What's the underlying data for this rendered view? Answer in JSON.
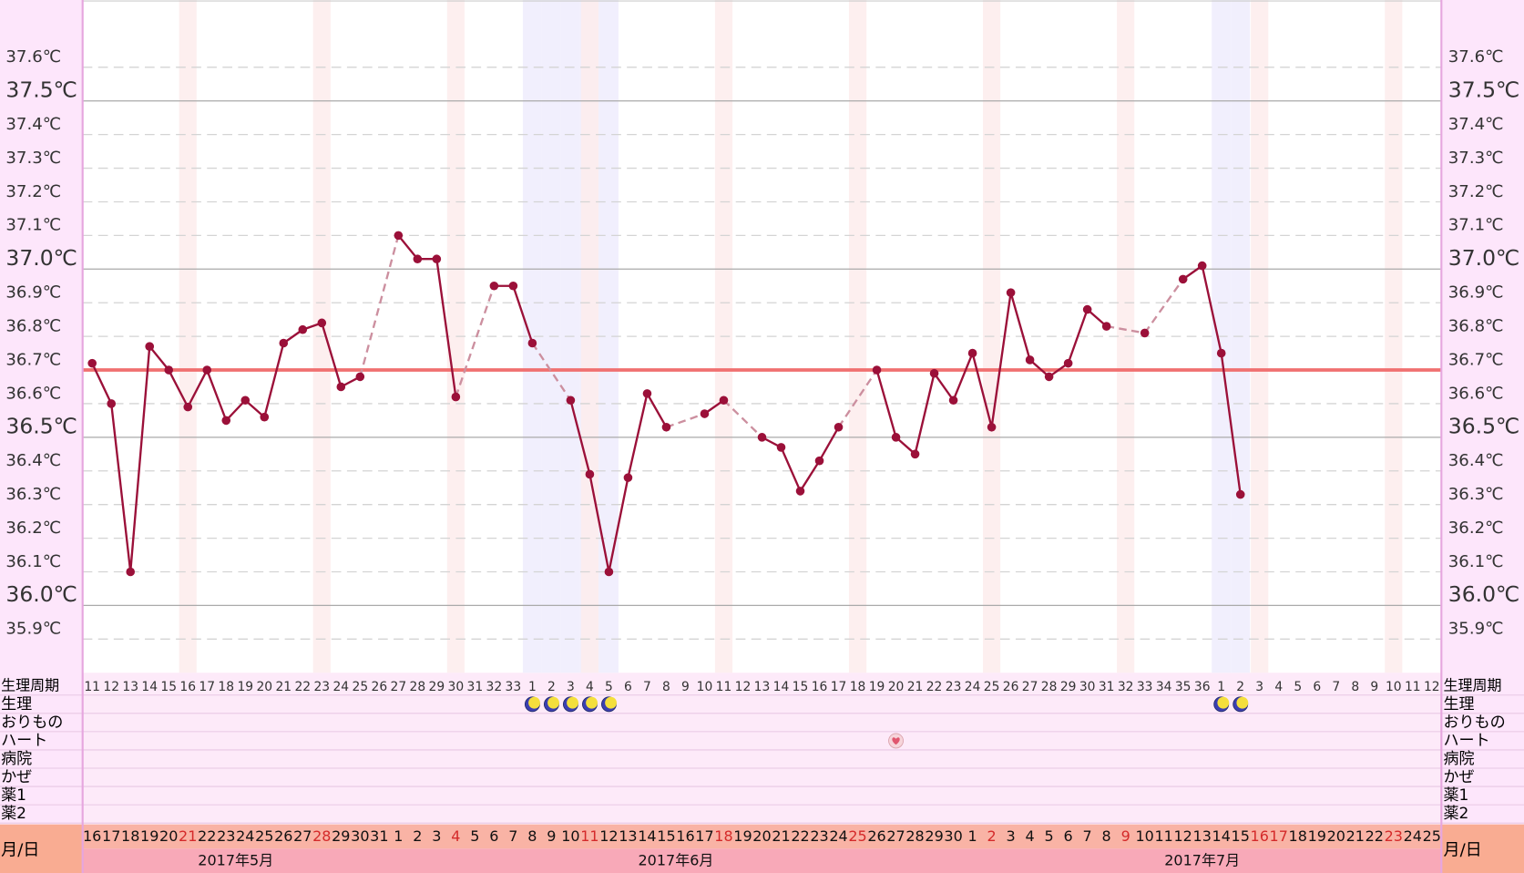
{
  "chart_data": {
    "type": "line",
    "categories": [
      "16",
      "17",
      "18",
      "19",
      "20",
      "21",
      "22",
      "23",
      "24",
      "25",
      "26",
      "27",
      "28",
      "29",
      "30",
      "31",
      "1",
      "2",
      "3",
      "4",
      "5",
      "6",
      "7",
      "8",
      "9",
      "10",
      "11",
      "12",
      "13",
      "14",
      "15",
      "16",
      "17",
      "18",
      "19",
      "20",
      "21",
      "22",
      "23",
      "24",
      "25",
      "26",
      "27",
      "28",
      "29",
      "30",
      "1",
      "2",
      "3",
      "4",
      "5",
      "6",
      "7",
      "8",
      "9",
      "10",
      "11",
      "12",
      "13",
      "14",
      "15",
      "16",
      "17",
      "18",
      "19",
      "20",
      "21",
      "22",
      "23",
      "24",
      "25"
    ],
    "cycle_days": [
      11,
      12,
      13,
      14,
      15,
      16,
      17,
      18,
      19,
      20,
      21,
      22,
      23,
      24,
      25,
      26,
      27,
      28,
      29,
      30,
      31,
      32,
      33,
      1,
      2,
      3,
      4,
      5,
      6,
      7,
      8,
      9,
      10,
      11,
      12,
      13,
      14,
      15,
      16,
      17,
      18,
      19,
      20,
      21,
      22,
      23,
      24,
      25,
      26,
      27,
      28,
      29,
      30,
      31,
      32,
      33,
      34,
      35,
      36,
      1,
      2,
      3,
      4,
      5,
      6,
      7,
      8,
      9,
      10,
      11,
      12
    ],
    "values": [
      36.72,
      36.6,
      36.1,
      36.77,
      36.7,
      36.59,
      36.7,
      36.55,
      36.61,
      36.56,
      36.78,
      36.82,
      36.84,
      36.65,
      36.68,
      null,
      37.1,
      37.03,
      37.03,
      36.62,
      null,
      36.95,
      36.95,
      36.78,
      null,
      36.61,
      36.39,
      36.1,
      36.38,
      36.63,
      36.53,
      null,
      36.57,
      36.61,
      null,
      36.5,
      36.47,
      36.34,
      36.43,
      36.53,
      null,
      36.7,
      36.5,
      36.45,
      36.69,
      36.61,
      36.75,
      36.53,
      36.93,
      36.73,
      36.68,
      36.72,
      36.88,
      36.83,
      null,
      36.81,
      null,
      36.97,
      37.01,
      36.75,
      36.33,
      null,
      null,
      null,
      null,
      null,
      null,
      null,
      null,
      null,
      null
    ],
    "color": "#9b1039",
    "gap_color": "#cc8f9f",
    "reference_line": {
      "value": 36.7,
      "color": "#f07070"
    },
    "ylim": [
      35.8,
      37.8
    ],
    "yticks": [
      {
        "value": 35.9,
        "label": "35.9℃"
      },
      {
        "value": 36.0,
        "label": "36.0℃"
      },
      {
        "value": 36.1,
        "label": "36.1℃"
      },
      {
        "value": 36.2,
        "label": "36.2℃"
      },
      {
        "value": 36.3,
        "label": "36.3℃"
      },
      {
        "value": 36.4,
        "label": "36.4℃"
      },
      {
        "value": 36.5,
        "label": "36.5℃"
      },
      {
        "value": 36.6,
        "label": "36.6℃"
      },
      {
        "value": 36.7,
        "label": "36.7℃"
      },
      {
        "value": 36.8,
        "label": "36.8℃"
      },
      {
        "value": 36.9,
        "label": "36.9℃"
      },
      {
        "value": 37.0,
        "label": "37.0℃"
      },
      {
        "value": 37.1,
        "label": "37.1℃"
      },
      {
        "value": 37.2,
        "label": "37.2℃"
      },
      {
        "value": 37.3,
        "label": "37.3℃"
      },
      {
        "value": 37.4,
        "label": "37.4℃"
      },
      {
        "value": 37.5,
        "label": "37.5℃"
      },
      {
        "value": 37.6,
        "label": "37.6℃"
      }
    ],
    "grid": true,
    "sunday_indices": [
      5,
      12,
      19,
      26,
      33,
      40,
      47,
      54,
      61,
      68
    ],
    "holiday_indices": [
      62
    ],
    "cycle_label": "生理周期",
    "event_rows": [
      {
        "label": "生理",
        "days": [
          23,
          24,
          25,
          26,
          27,
          59,
          60
        ]
      },
      {
        "label": "おりもの",
        "days": []
      },
      {
        "label": "ハート",
        "days": [
          42
        ]
      },
      {
        "label": "病院",
        "days": []
      },
      {
        "label": "かぜ",
        "days": []
      },
      {
        "label": "薬1",
        "days": []
      },
      {
        "label": "薬2",
        "days": []
      }
    ],
    "date_row_label": "月/日",
    "months": [
      "2017年5月",
      "2017年6月",
      "2017年7月"
    ]
  }
}
